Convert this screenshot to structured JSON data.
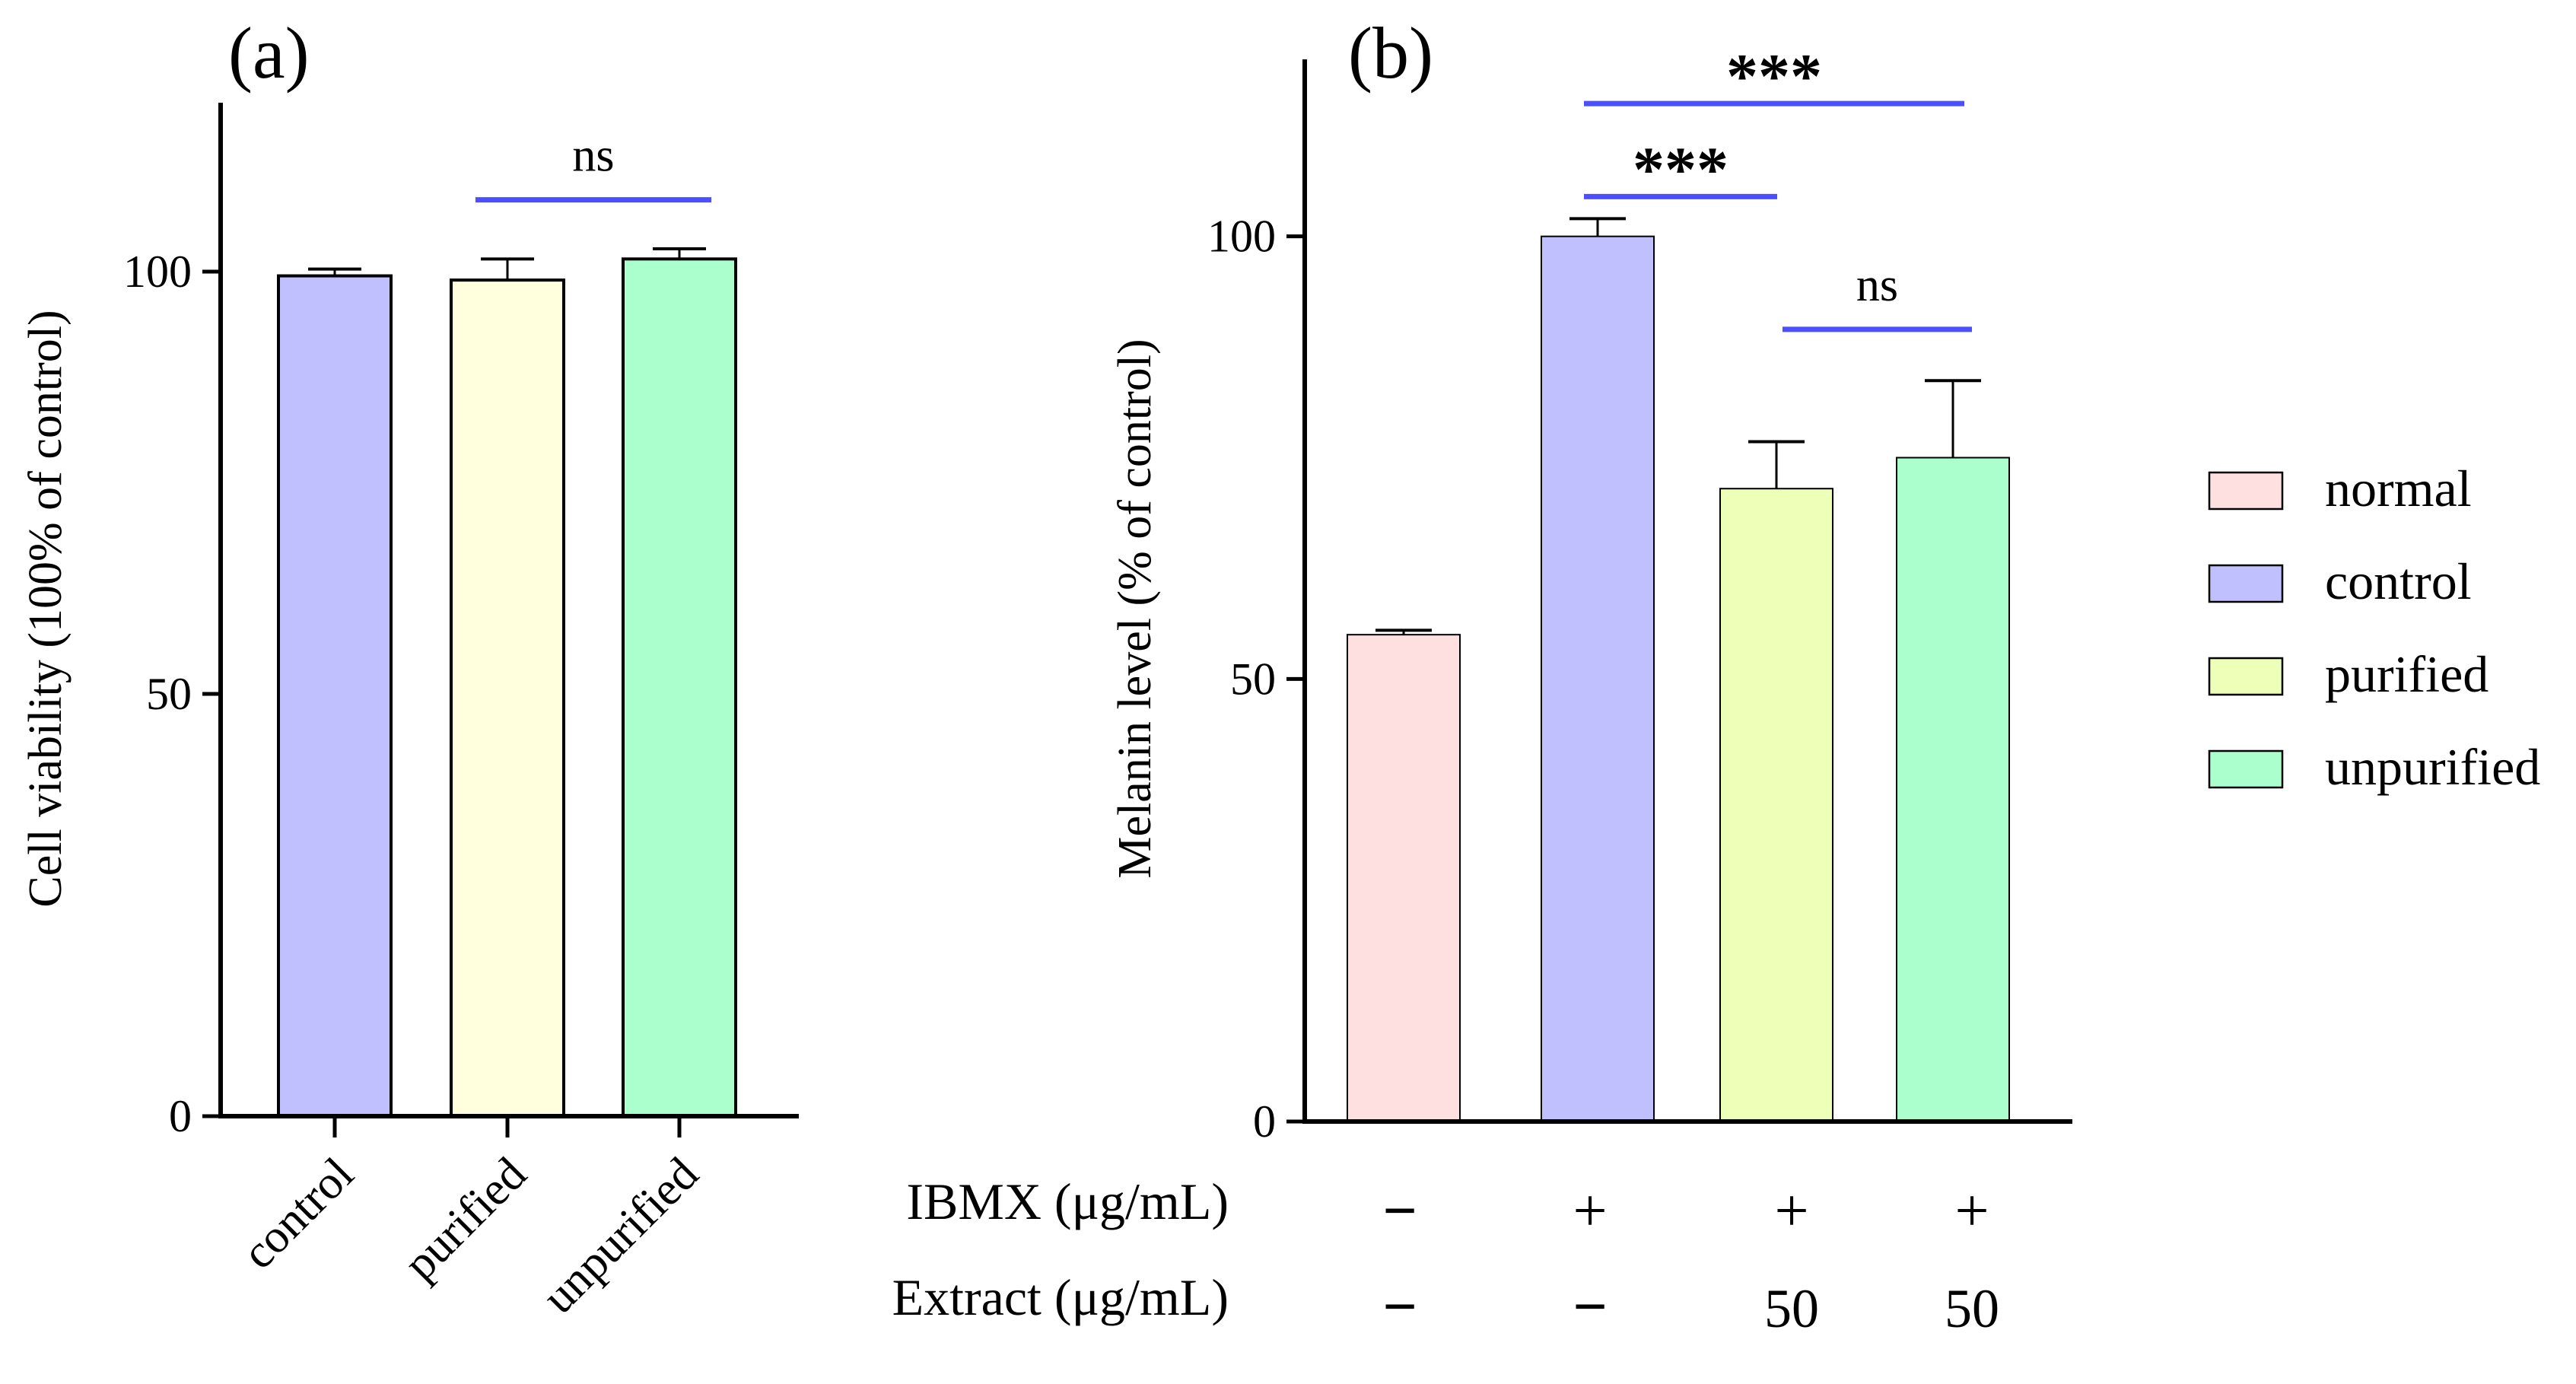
{
  "chart_data": [
    {
      "panel_label": "(a)",
      "type": "bar",
      "categories": [
        "control",
        "purified",
        "unpurified"
      ],
      "values": [
        99.5,
        99.0,
        101.5
      ],
      "errors": [
        0.8,
        2.5,
        1.2
      ],
      "colors": [
        "#c0c0ff",
        "#ffffdd",
        "#aaffcc"
      ],
      "ylabel": "Cell viability (100% of control)",
      "ylim": [
        0,
        120
      ],
      "yticks": [
        "0",
        "50",
        "100"
      ],
      "ytick_values": [
        0,
        50,
        100
      ],
      "significance": [
        {
          "from": 1,
          "to": 2,
          "y": 108.5,
          "label": "ns"
        }
      ],
      "grid": false
    },
    {
      "panel_label": "(b)",
      "type": "bar",
      "categories": [
        "normal",
        "control",
        "purified",
        "unpurified"
      ],
      "values": [
        55.0,
        100.0,
        71.5,
        75.0
      ],
      "errors": [
        0.5,
        2.0,
        5.3,
        8.7
      ],
      "colors": [
        "#ffe0e0",
        "#c0c0ff",
        "#eeffb8",
        "#aaffcc"
      ],
      "ylabel": "Melanin level (% of control)",
      "ylim": [
        0,
        120
      ],
      "yticks": [
        "0",
        "50",
        "100"
      ],
      "ytick_values": [
        0,
        50,
        100
      ],
      "significance": [
        {
          "from": 1,
          "to": 3,
          "y": 115.0,
          "label": "***"
        },
        {
          "from": 1,
          "to": 2,
          "y": 104.5,
          "label": "***"
        },
        {
          "from": 2,
          "to": 3,
          "y": 89.5,
          "label": "ns"
        }
      ],
      "treatment_rows": [
        {
          "label": "IBMX (μg/mL)",
          "values": [
            "−",
            "+",
            "+",
            "+"
          ]
        },
        {
          "label": "Extract (μg/mL)",
          "values": [
            "−",
            "−",
            "50",
            "50"
          ]
        }
      ],
      "legend": {
        "position": "right",
        "entries": [
          {
            "name": "normal",
            "color": "#ffe0e0"
          },
          {
            "name": "control",
            "color": "#c0c0ff"
          },
          {
            "name": "purified",
            "color": "#eeffb8"
          },
          {
            "name": "unpurified",
            "color": "#aaffcc"
          }
        ]
      },
      "grid": false
    }
  ],
  "annotation_color": "#4a50ff"
}
